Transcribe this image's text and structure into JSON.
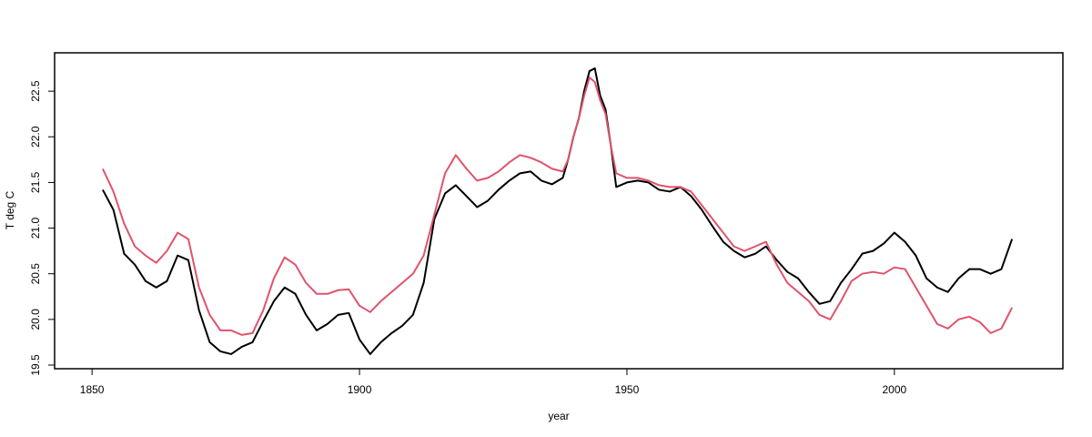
{
  "chart_data": {
    "type": "line",
    "xlabel": "year",
    "ylabel": "T deg C",
    "xlim": [
      1843,
      2031.5
    ],
    "ylim": [
      19.46,
      22.92
    ],
    "xticks": [
      1850,
      1900,
      1950,
      2000
    ],
    "yticks": [
      19.5,
      {
        "value": 20,
        "label": "20.0"
      },
      20.5,
      {
        "value": 21,
        "label": "21.0"
      },
      21.5,
      {
        "value": 22,
        "label": "22.0"
      },
      22.5
    ],
    "x": [
      1852,
      1854,
      1856,
      1858,
      1860,
      1862,
      1864,
      1866,
      1868,
      1870,
      1872,
      1874,
      1876,
      1878,
      1880,
      1882,
      1884,
      1886,
      1888,
      1890,
      1892,
      1894,
      1896,
      1898,
      1900,
      1902,
      1904,
      1906,
      1908,
      1910,
      1912,
      1914,
      1916,
      1918,
      1920,
      1922,
      1924,
      1926,
      1928,
      1930,
      1932,
      1934,
      1936,
      1938,
      1939,
      1940,
      1941,
      1942,
      1943,
      1944,
      1945,
      1946,
      1947,
      1948,
      1950,
      1952,
      1954,
      1956,
      1958,
      1960,
      1962,
      1964,
      1966,
      1968,
      1970,
      1972,
      1974,
      1976,
      1978,
      1980,
      1982,
      1984,
      1986,
      1988,
      1990,
      1992,
      1994,
      1996,
      1998,
      2000,
      2002,
      2004,
      2006,
      2008,
      2010,
      2012,
      2014,
      2016,
      2018,
      2020,
      2022
    ],
    "series": [
      {
        "color": "#000000",
        "values": [
          21.42,
          21.2,
          20.72,
          20.6,
          20.42,
          20.35,
          20.42,
          20.7,
          20.65,
          20.1,
          19.75,
          19.65,
          19.62,
          19.7,
          19.75,
          19.98,
          20.2,
          20.35,
          20.28,
          20.05,
          19.88,
          19.95,
          20.05,
          20.07,
          19.78,
          19.62,
          19.75,
          19.85,
          19.93,
          20.05,
          20.4,
          21.1,
          21.38,
          21.47,
          21.35,
          21.23,
          21.3,
          21.42,
          21.52,
          21.6,
          21.62,
          21.52,
          21.48,
          21.55,
          21.75,
          22.0,
          22.2,
          22.5,
          22.72,
          22.75,
          22.45,
          22.3,
          21.9,
          21.45,
          21.5,
          21.52,
          21.5,
          21.42,
          21.4,
          21.45,
          21.35,
          21.2,
          21.02,
          20.85,
          20.75,
          20.68,
          20.72,
          20.8,
          20.65,
          20.52,
          20.45,
          20.3,
          20.17,
          20.2,
          20.4,
          20.55,
          20.72,
          20.75,
          20.83,
          20.95,
          20.85,
          20.7,
          20.45,
          20.35,
          20.3,
          20.45,
          20.55,
          20.55,
          20.5,
          20.55,
          20.88
        ]
      },
      {
        "color": "#df536b",
        "values": [
          21.65,
          21.4,
          21.05,
          20.8,
          20.7,
          20.62,
          20.75,
          20.95,
          20.88,
          20.35,
          20.05,
          19.88,
          19.88,
          19.83,
          19.85,
          20.1,
          20.45,
          20.68,
          20.6,
          20.4,
          20.28,
          20.28,
          20.32,
          20.33,
          20.15,
          20.08,
          20.2,
          20.3,
          20.4,
          20.5,
          20.7,
          21.15,
          21.6,
          21.8,
          21.65,
          21.52,
          21.55,
          21.62,
          21.72,
          21.8,
          21.77,
          21.72,
          21.65,
          21.62,
          21.75,
          22.0,
          22.2,
          22.45,
          22.65,
          22.6,
          22.4,
          22.25,
          21.9,
          21.6,
          21.55,
          21.55,
          21.52,
          21.47,
          21.45,
          21.45,
          21.4,
          21.25,
          21.1,
          20.95,
          20.8,
          20.75,
          20.8,
          20.85,
          20.6,
          20.4,
          20.3,
          20.2,
          20.05,
          20.0,
          20.2,
          20.42,
          20.5,
          20.52,
          20.5,
          20.57,
          20.55,
          20.35,
          20.15,
          19.95,
          19.9,
          20.0,
          20.03,
          19.97,
          19.85,
          19.9,
          20.13
        ]
      }
    ]
  }
}
